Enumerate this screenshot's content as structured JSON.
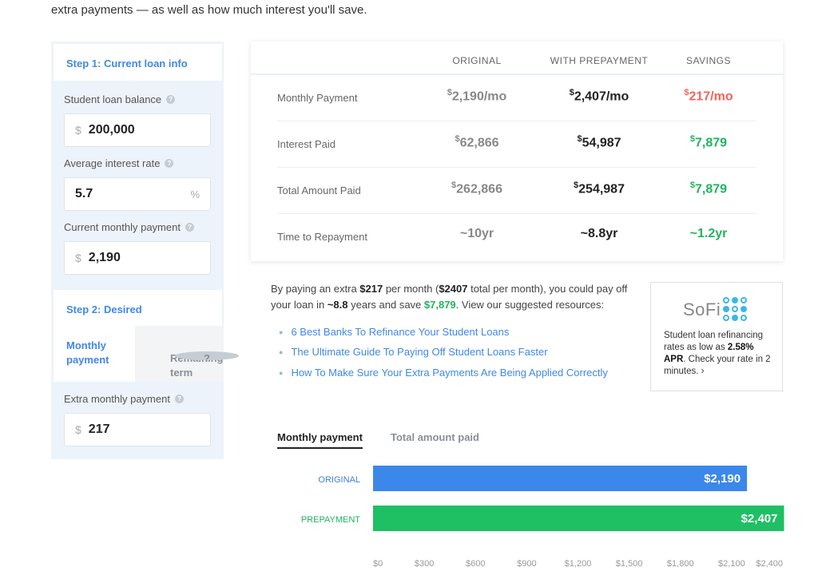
{
  "intro": "extra payments — as well as how much interest you'll save.",
  "step1": {
    "title": "Step 1: Current loan info",
    "balance": {
      "label": "Student loan balance",
      "prefix": "$",
      "value": "200,000"
    },
    "rate": {
      "label": "Average interest rate",
      "value": "5.7",
      "suffix": "%"
    },
    "payment": {
      "label": "Current monthly payment",
      "prefix": "$",
      "value": "2,190"
    }
  },
  "step2": {
    "title": "Step 2: Desired",
    "tab_monthly": "Monthly payment",
    "tab_remaining": "Remaining term",
    "extra": {
      "label": "Extra monthly payment",
      "prefix": "$",
      "value": "217"
    }
  },
  "table": {
    "headers": [
      "ORIGINAL",
      "WITH PREPAYMENT",
      "SAVINGS"
    ],
    "rows": [
      {
        "label": "Monthly Payment",
        "original": "2,190/mo",
        "prepay": "2,407/mo",
        "savings": "217/mo",
        "currency": true
      },
      {
        "label": "Interest Paid",
        "original": "62,866",
        "prepay": "54,987",
        "savings": "7,879",
        "currency": true
      },
      {
        "label": "Total Amount Paid",
        "original": "262,866",
        "prepay": "254,987",
        "savings": "7,879",
        "currency": true
      },
      {
        "label": "Time to Repayment",
        "original": "~10yr",
        "prepay": "~8.8yr",
        "savings": "~1.2yr",
        "currency": false
      }
    ],
    "colors": {
      "savings_negative": "#f2645a",
      "savings_positive": "#21b35e"
    }
  },
  "summary": {
    "p1": "By paying an extra ",
    "extra": "$217",
    "p2": " per month (",
    "total": "$2407",
    "p3": " total per month), you could pay off your loan in ",
    "years": "~8.8",
    "p4": " years and save ",
    "save": "$7,879",
    "p5": ". View our suggested resources:"
  },
  "links": [
    "6 Best Banks To Refinance Your Student Loans",
    "The Ultimate Guide To Paying Off Student Loans Faster",
    "How To Make Sure Your Extra Payments Are Being Applied Correctly"
  ],
  "ad": {
    "logo": "SoFi",
    "copy1": "Student loan refinancing rates as low as ",
    "rate": "2.58% APR",
    "copy2": ". Check your rate in 2 minutes. ›"
  },
  "chart_tabs": {
    "active": "Monthly payment",
    "inactive": "Total amount paid"
  },
  "chart_data": {
    "type": "bar",
    "orientation": "horizontal",
    "categories": [
      "ORIGINAL",
      "PREPAYMENT"
    ],
    "values": [
      2190,
      2407
    ],
    "value_labels": [
      "$2,190",
      "$2,407"
    ],
    "colors": [
      "#3b88ea",
      "#1fbf64"
    ],
    "label_colors": [
      "#3f7fd6",
      "#1fb35e"
    ],
    "xlim": [
      0,
      2400
    ],
    "xticks": [
      0,
      300,
      600,
      900,
      1200,
      1500,
      1800,
      2100,
      2400
    ],
    "xtick_labels": [
      "$0",
      "$300",
      "$600",
      "$900",
      "$1,200",
      "$1,500",
      "$1,800",
      "$2,100",
      "$2,400"
    ]
  }
}
